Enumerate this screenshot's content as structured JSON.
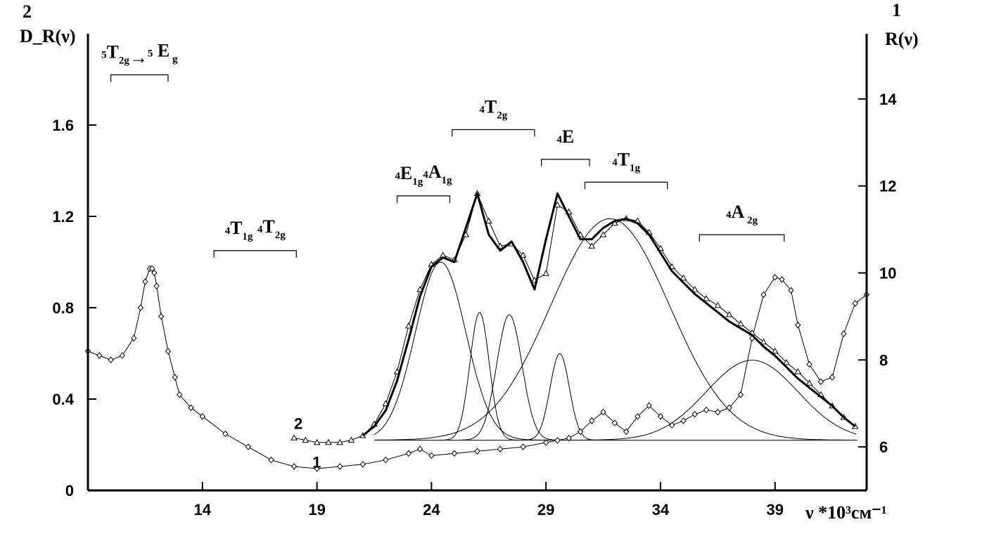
{
  "chart_data": {
    "type": "line",
    "title": "",
    "xlabel": "ν *10³cм⁻¹",
    "ylabel_left": "D_R(ν)",
    "ylabel_right": "R(ν)",
    "left_axis_marker": "2",
    "right_axis_marker": "1",
    "xlim": [
      9,
      43
    ],
    "ylim_left": [
      0,
      2.0
    ],
    "ylim_right": [
      5,
      15.5
    ],
    "x_ticks": [
      14,
      19,
      24,
      29,
      34,
      39
    ],
    "y_ticks_left": [
      0,
      0.4,
      0.8,
      1.2,
      1.6
    ],
    "y_ticks_right": [
      6,
      8,
      10,
      12,
      14
    ],
    "grid": false,
    "series": [
      {
        "name": "1",
        "axis": "right",
        "marker": "diamond",
        "x": [
          9.0,
          9.5,
          10.0,
          10.5,
          11.0,
          11.3,
          11.5,
          11.7,
          11.8,
          11.9,
          12.0,
          12.2,
          12.5,
          12.8,
          13.0,
          13.5,
          14.0,
          15.0,
          16.0,
          17.0,
          18.0,
          19.0,
          20.0,
          21.0,
          22.0,
          23.0,
          23.5,
          24.0,
          25.0,
          26.0,
          27.0,
          28.0,
          29.0,
          29.5,
          30.0,
          30.5,
          31.0,
          31.5,
          32.0,
          32.5,
          33.0,
          33.5,
          34.0,
          34.5,
          35.0,
          35.5,
          36.0,
          36.5,
          37.0,
          37.5,
          38.0,
          38.5,
          39.0,
          39.3,
          39.7,
          40.0,
          40.5,
          41.0,
          41.5,
          42.0,
          42.5,
          43.0
        ],
        "y": [
          8.2,
          8.1,
          8.0,
          8.1,
          8.5,
          9.2,
          9.8,
          10.1,
          10.1,
          10.0,
          9.7,
          9.0,
          8.2,
          7.6,
          7.2,
          6.9,
          6.7,
          6.3,
          6.0,
          5.7,
          5.55,
          5.5,
          5.55,
          5.6,
          5.7,
          5.85,
          5.95,
          5.8,
          5.85,
          5.9,
          5.95,
          6.0,
          6.1,
          6.15,
          6.2,
          6.35,
          6.6,
          6.8,
          6.55,
          6.35,
          6.7,
          6.95,
          6.7,
          6.5,
          6.6,
          6.75,
          6.85,
          6.8,
          6.9,
          7.2,
          8.5,
          9.5,
          9.9,
          9.85,
          9.6,
          8.8,
          7.9,
          7.5,
          7.6,
          8.6,
          9.3,
          9.5
        ]
      },
      {
        "name": "2",
        "axis": "left",
        "marker": "triangle",
        "x": [
          18.0,
          18.5,
          19.0,
          19.5,
          20.0,
          20.5,
          21.0,
          21.5,
          22.0,
          22.5,
          23.0,
          23.5,
          24.0,
          24.5,
          25.0,
          25.5,
          26.0,
          26.5,
          27.0,
          27.5,
          28.0,
          28.5,
          29.0,
          29.5,
          30.0,
          30.5,
          31.0,
          31.5,
          32.0,
          32.5,
          33.0,
          33.5,
          34.0,
          34.5,
          35.0,
          35.5,
          36.0,
          36.5,
          37.0,
          37.5,
          38.0,
          38.5,
          39.0,
          39.5,
          40.0,
          40.5,
          41.0,
          41.5,
          42.0,
          42.5
        ],
        "y": [
          0.23,
          0.22,
          0.21,
          0.21,
          0.21,
          0.22,
          0.24,
          0.29,
          0.38,
          0.52,
          0.72,
          0.88,
          0.99,
          1.03,
          1.01,
          1.12,
          1.3,
          1.18,
          1.07,
          1.08,
          1.03,
          0.92,
          0.95,
          1.25,
          1.22,
          1.12,
          1.07,
          1.12,
          1.17,
          1.19,
          1.18,
          1.13,
          1.06,
          0.98,
          0.93,
          0.88,
          0.84,
          0.81,
          0.77,
          0.73,
          0.69,
          0.65,
          0.61,
          0.56,
          0.52,
          0.47,
          0.42,
          0.37,
          0.32,
          0.28
        ]
      },
      {
        "name": "2 fit",
        "axis": "left",
        "style": "thick-line",
        "x": [
          21.0,
          21.5,
          22.0,
          22.5,
          23.0,
          23.5,
          24.0,
          24.5,
          25.0,
          25.5,
          26.0,
          26.5,
          27.0,
          27.5,
          28.0,
          28.5,
          29.0,
          29.5,
          30.0,
          30.5,
          31.0,
          31.5,
          32.0,
          32.5,
          33.0,
          33.5,
          34.0,
          34.5,
          35.0,
          35.5,
          36.0,
          36.5,
          37.0,
          37.5,
          38.0,
          38.5,
          39.0,
          39.5,
          40.0,
          40.5,
          41.0,
          41.5,
          42.0,
          42.5
        ],
        "y": [
          0.24,
          0.28,
          0.35,
          0.48,
          0.66,
          0.85,
          0.98,
          1.02,
          1.0,
          1.15,
          1.3,
          1.12,
          1.05,
          1.09,
          1.0,
          0.88,
          1.1,
          1.3,
          1.2,
          1.1,
          1.1,
          1.15,
          1.18,
          1.19,
          1.17,
          1.12,
          1.04,
          0.96,
          0.91,
          0.86,
          0.82,
          0.78,
          0.74,
          0.71,
          0.68,
          0.63,
          0.59,
          0.54,
          0.49,
          0.45,
          0.41,
          0.37,
          0.32,
          0.28
        ]
      }
    ],
    "gaussian_components": [
      {
        "center": 24.4,
        "peak": 1.0,
        "sigma": 1.1
      },
      {
        "center": 26.1,
        "peak": 0.78,
        "sigma": 0.42
      },
      {
        "center": 27.4,
        "peak": 0.77,
        "sigma": 0.55
      },
      {
        "center": 29.6,
        "peak": 0.6,
        "sigma": 0.42
      },
      {
        "center": 31.8,
        "peak": 1.19,
        "sigma": 2.6
      },
      {
        "center": 38.0,
        "peak": 0.57,
        "sigma": 2.0
      }
    ],
    "component_baseline": 0.22,
    "annotations": [
      {
        "id": "t2g-eg",
        "x_start": 10.0,
        "x_end": 12.5,
        "y": 1.82,
        "parts": [
          {
            "t": "5",
            "s": "sup"
          },
          {
            "t": "T",
            "s": ""
          },
          {
            "t": "2g",
            "s": "sub"
          },
          {
            "t": "→",
            "s": ""
          },
          {
            "t": "5",
            "s": "sup"
          },
          {
            "t": " E",
            "s": ""
          },
          {
            "t": " g",
            "s": "sub"
          }
        ]
      },
      {
        "id": "t1g-t2g-low",
        "x_start": 14.5,
        "x_end": 18.1,
        "y": 1.05,
        "parts": [
          {
            "t": "4",
            "s": "sup"
          },
          {
            "t": "T",
            "s": ""
          },
          {
            "t": "1g",
            "s": "sub"
          },
          {
            "t": "   ",
            "s": ""
          },
          {
            "t": "4",
            "s": "sup"
          },
          {
            "t": "T",
            "s": ""
          },
          {
            "t": "2g",
            "s": "sub"
          }
        ]
      },
      {
        "id": "e1g-a1g",
        "x_start": 22.5,
        "x_end": 24.8,
        "y": 1.29,
        "parts": [
          {
            "t": "4",
            "s": "sup"
          },
          {
            "t": "E",
            "s": ""
          },
          {
            "t": "1g",
            "s": "sub"
          },
          {
            "t": "4",
            "s": "sup"
          },
          {
            "t": "A",
            "s": ""
          },
          {
            "t": "1g",
            "s": "sub"
          }
        ]
      },
      {
        "id": "t2g-high",
        "x_start": 24.9,
        "x_end": 28.5,
        "y": 1.58,
        "parts": [
          {
            "t": "4",
            "s": "sup"
          },
          {
            "t": "T",
            "s": ""
          },
          {
            "t": "2g",
            "s": "sub"
          }
        ]
      },
      {
        "id": "e",
        "x_start": 28.8,
        "x_end": 30.9,
        "y": 1.45,
        "parts": [
          {
            "t": "4",
            "s": "sup"
          },
          {
            "t": "E",
            "s": ""
          }
        ]
      },
      {
        "id": "t1g-high",
        "x_start": 30.7,
        "x_end": 34.3,
        "y": 1.35,
        "parts": [
          {
            "t": "4",
            "s": "sup"
          },
          {
            "t": "T",
            "s": ""
          },
          {
            "t": "1g",
            "s": "sub"
          }
        ]
      },
      {
        "id": "a2g",
        "x_start": 35.7,
        "x_end": 39.4,
        "y": 1.12,
        "parts": [
          {
            "t": "4",
            "s": "sup"
          },
          {
            "t": "A",
            "s": ""
          },
          {
            "t": " 2g",
            "s": "sub"
          }
        ]
      }
    ],
    "curve_labels": [
      {
        "text": "2",
        "x": 18.0,
        "y": 0.27
      },
      {
        "text": "1",
        "x": 18.8,
        "y": 0.1
      }
    ]
  }
}
